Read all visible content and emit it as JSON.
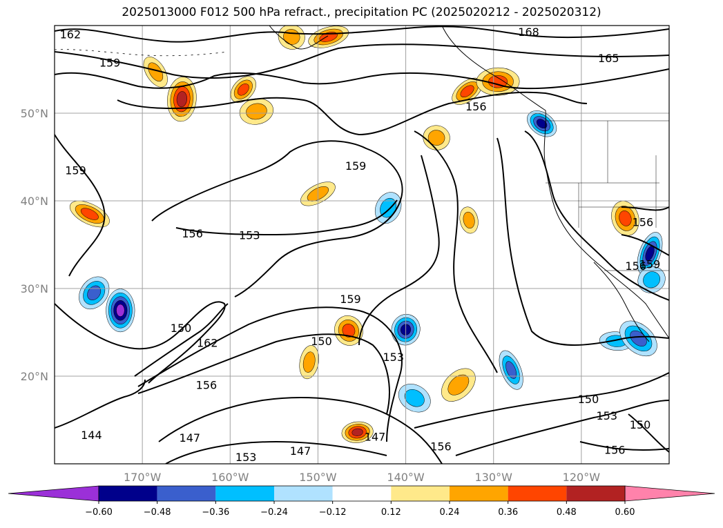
{
  "chart_data": {
    "type": "contour-map",
    "title": "2025013000 F012 500 hPa refract., precipitation PC (2025020212 - 2025020312)",
    "x_axis": {
      "range": [
        -180,
        -110
      ],
      "ticks": [
        -170,
        -160,
        -150,
        -140,
        -130,
        -120
      ],
      "tick_labels": [
        "170°W",
        "160°W",
        "150°W",
        "140°W",
        "130°W",
        "120°W"
      ]
    },
    "y_axis": {
      "range": [
        10,
        60
      ],
      "ticks": [
        20,
        30,
        40,
        50
      ],
      "tick_labels": [
        "20°N",
        "30°N",
        "40°N",
        "50°N"
      ]
    },
    "grid": true,
    "contour_labels": [
      {
        "text": "162",
        "lon": -178.2,
        "lat": 59.0
      },
      {
        "text": "159",
        "lon": -173.7,
        "lat": 55.8
      },
      {
        "text": "168",
        "lon": -126.0,
        "lat": 59.3
      },
      {
        "text": "165",
        "lon": -116.9,
        "lat": 56.3
      },
      {
        "text": "156",
        "lon": -132.0,
        "lat": 50.8
      },
      {
        "text": "159",
        "lon": -177.6,
        "lat": 43.5
      },
      {
        "text": "159",
        "lon": -145.7,
        "lat": 44.0
      },
      {
        "text": "156",
        "lon": -164.3,
        "lat": 36.3
      },
      {
        "text": "153",
        "lon": -157.8,
        "lat": 36.1
      },
      {
        "text": "156",
        "lon": -113.0,
        "lat": 37.6
      },
      {
        "text": "156",
        "lon": -113.8,
        "lat": 32.6
      },
      {
        "text": "159",
        "lon": -112.2,
        "lat": 32.8
      },
      {
        "text": "159",
        "lon": -146.3,
        "lat": 28.8
      },
      {
        "text": "150",
        "lon": -165.6,
        "lat": 25.5
      },
      {
        "text": "162",
        "lon": -162.6,
        "lat": 23.8
      },
      {
        "text": "150",
        "lon": -149.6,
        "lat": 24.0
      },
      {
        "text": "153",
        "lon": -141.4,
        "lat": 22.2
      },
      {
        "text": "156",
        "lon": -162.7,
        "lat": 19.0
      },
      {
        "text": "150",
        "lon": -119.2,
        "lat": 17.4
      },
      {
        "text": "153",
        "lon": -117.1,
        "lat": 15.5
      },
      {
        "text": "150",
        "lon": -113.3,
        "lat": 14.5
      },
      {
        "text": "144",
        "lon": -175.8,
        "lat": 13.3
      },
      {
        "text": "147",
        "lon": -164.6,
        "lat": 13.0
      },
      {
        "text": "147",
        "lon": -143.5,
        "lat": 13.1
      },
      {
        "text": "147",
        "lon": -152.0,
        "lat": 11.5
      },
      {
        "text": "153",
        "lon": -158.2,
        "lat": 10.8
      },
      {
        "text": "156",
        "lon": -136.0,
        "lat": 12.0
      },
      {
        "text": "156",
        "lon": -116.2,
        "lat": 11.6
      }
    ],
    "colorbar": {
      "extend": "both",
      "boundaries": [
        -0.72,
        -0.6,
        -0.48,
        -0.36,
        -0.24,
        -0.12,
        0.12,
        0.24,
        0.36,
        0.48,
        0.6,
        0.72
      ],
      "colors": [
        "#9b30d8",
        "#00008b",
        "#3a5fcd",
        "#00bfff",
        "#b0e2ff",
        "#ffffff",
        "#ffe98a",
        "#ffa500",
        "#ff4500",
        "#b22222",
        "#ff82ab"
      ],
      "under_color": "#9b30d8",
      "over_color": "#ff82ab",
      "tick_labels": [
        "−0.60",
        "−0.48",
        "−0.36",
        "−0.24",
        "−0.12",
        "0.12",
        "0.24",
        "0.36",
        "0.48",
        "0.60"
      ]
    },
    "precip_blobs": [
      {
        "lon": -172.5,
        "lat": 27.5,
        "v": -0.65
      },
      {
        "lon": -175.5,
        "lat": 29.5,
        "v": -0.4
      },
      {
        "lon": -148.8,
        "lat": 58.7,
        "v": 0.4
      },
      {
        "lon": -153.0,
        "lat": 58.7,
        "v": 0.3
      },
      {
        "lon": -168.5,
        "lat": 54.7,
        "v": 0.35
      },
      {
        "lon": -165.5,
        "lat": 51.6,
        "v": 0.5
      },
      {
        "lon": -158.5,
        "lat": 52.7,
        "v": 0.45
      },
      {
        "lon": -157.0,
        "lat": 50.2,
        "v": 0.35
      },
      {
        "lon": -176.0,
        "lat": 38.5,
        "v": 0.45
      },
      {
        "lon": -146.5,
        "lat": 25.2,
        "v": 0.45
      },
      {
        "lon": -151.0,
        "lat": 21.6,
        "v": 0.35
      },
      {
        "lon": -134.0,
        "lat": 19.0,
        "v": 0.35
      },
      {
        "lon": -145.5,
        "lat": 13.6,
        "v": 0.5
      },
      {
        "lon": -139.0,
        "lat": 17.5,
        "v": -0.35
      },
      {
        "lon": -128.0,
        "lat": 20.7,
        "v": -0.4
      },
      {
        "lon": -140.0,
        "lat": 25.3,
        "v": -0.48
      },
      {
        "lon": -133.0,
        "lat": 52.5,
        "v": 0.4
      },
      {
        "lon": -129.5,
        "lat": 53.6,
        "v": 0.45
      },
      {
        "lon": -124.5,
        "lat": 48.8,
        "v": -0.55
      },
      {
        "lon": -115.0,
        "lat": 38.0,
        "v": 0.4
      },
      {
        "lon": -112.2,
        "lat": 34.0,
        "v": -0.5
      },
      {
        "lon": -112.0,
        "lat": 31.0,
        "v": -0.35
      },
      {
        "lon": -116.0,
        "lat": 24.0,
        "v": -0.35
      },
      {
        "lon": -113.5,
        "lat": 24.3,
        "v": -0.45
      },
      {
        "lon": -132.8,
        "lat": 37.8,
        "v": 0.3
      },
      {
        "lon": -142.0,
        "lat": 39.2,
        "v": -0.3
      },
      {
        "lon": -150.0,
        "lat": 40.8,
        "v": 0.3
      },
      {
        "lon": -136.5,
        "lat": 47.2,
        "v": 0.3
      }
    ]
  }
}
